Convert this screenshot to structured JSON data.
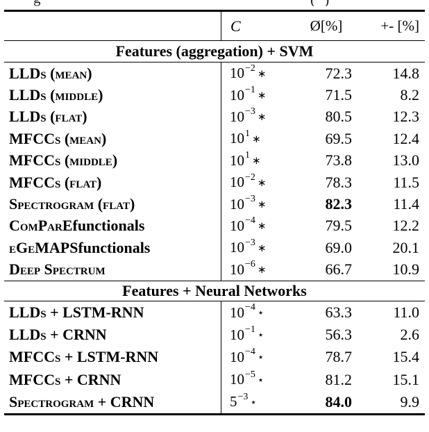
{
  "caption_fragments": [
    {
      "text": "g"
    },
    {
      "text": "(  )"
    }
  ],
  "table": {
    "header": {
      "c": "C",
      "mean": "Ø[%]",
      "std": "+- [%]"
    },
    "sections": [
      {
        "title": "Features (aggregation) + SVM",
        "rows": [
          {
            "label_sc": "LLDs (mean)",
            "label_plain": "",
            "c_base": "10",
            "c_exp": "−2",
            "c_sym": "∗",
            "mean": "72.3",
            "std": "14.8",
            "bold_mean": false
          },
          {
            "label_sc": "LLDs (middle)",
            "label_plain": "",
            "c_base": "10",
            "c_exp": "−1",
            "c_sym": "∗",
            "mean": "71.5",
            "std": "8.2",
            "bold_mean": false
          },
          {
            "label_sc": "LLDs (flat)",
            "label_plain": "",
            "c_base": "10",
            "c_exp": "−3",
            "c_sym": "∗",
            "mean": "80.5",
            "std": "12.3",
            "bold_mean": false
          },
          {
            "label_sc": "MFCCs (mean)",
            "label_plain": "",
            "c_base": "10",
            "c_exp": "1",
            "c_sym": "∗",
            "mean": "69.5",
            "std": "12.4",
            "bold_mean": false
          },
          {
            "label_sc": "MFCCs (middle)",
            "label_plain": "",
            "c_base": "10",
            "c_exp": "1",
            "c_sym": "∗",
            "mean": "73.8",
            "std": "13.0",
            "bold_mean": false
          },
          {
            "label_sc": "MFCCs (flat)",
            "label_plain": "",
            "c_base": "10",
            "c_exp": "−2",
            "c_sym": "∗",
            "mean": "78.3",
            "std": "11.5",
            "bold_mean": false
          },
          {
            "label_sc": "Spectrogram (flat)",
            "label_plain": "",
            "c_base": "10",
            "c_exp": "−3",
            "c_sym": "∗",
            "mean": "82.3",
            "std": "11.4",
            "bold_mean": true
          },
          {
            "label_sc": "ComParE",
            "label_plain": " functionals",
            "c_base": "10",
            "c_exp": "−4",
            "c_sym": "∗",
            "mean": "79.5",
            "std": "12.2",
            "bold_mean": false
          },
          {
            "label_sc": "eGeMAPS",
            "label_plain": " functionals",
            "c_base": "10",
            "c_exp": "−3",
            "c_sym": "∗",
            "mean": "69.0",
            "std": "20.1",
            "bold_mean": false
          },
          {
            "label_sc": "Deep Spectrum",
            "label_plain": "",
            "c_base": "10",
            "c_exp": "−6",
            "c_sym": "∗",
            "mean": "66.7",
            "std": "10.9",
            "bold_mean": false
          }
        ]
      },
      {
        "title": "Features + Neural Networks",
        "rows": [
          {
            "label_sc": "LLDs + LSTM-RNN",
            "label_plain": "",
            "c_base": "10",
            "c_exp": "−4",
            "c_sym": "⋆",
            "mean": "63.3",
            "std": "11.0",
            "bold_mean": false
          },
          {
            "label_sc": "LLDs + CRNN",
            "label_plain": "",
            "c_base": "10",
            "c_exp": "−1",
            "c_sym": "⋆",
            "mean": "56.3",
            "std": "2.6",
            "bold_mean": false
          },
          {
            "label_sc": "MFCCs + LSTM-RNN",
            "label_plain": "",
            "c_base": "10",
            "c_exp": "−4",
            "c_sym": "⋆",
            "mean": "78.7",
            "std": "15.4",
            "bold_mean": false
          },
          {
            "label_sc": "MFCCs + CRNN",
            "label_plain": "",
            "c_base": "10",
            "c_exp": "−5",
            "c_sym": "⋆",
            "mean": "81.2",
            "std": "15.1",
            "bold_mean": false
          },
          {
            "label_sc": "Spectrogram + CRNN",
            "label_plain": "",
            "c_base": "5",
            "c_exp": "−3",
            "c_sym": "⋆",
            "mean": "84.0",
            "std": "9.9",
            "bold_mean": true
          }
        ]
      }
    ]
  }
}
